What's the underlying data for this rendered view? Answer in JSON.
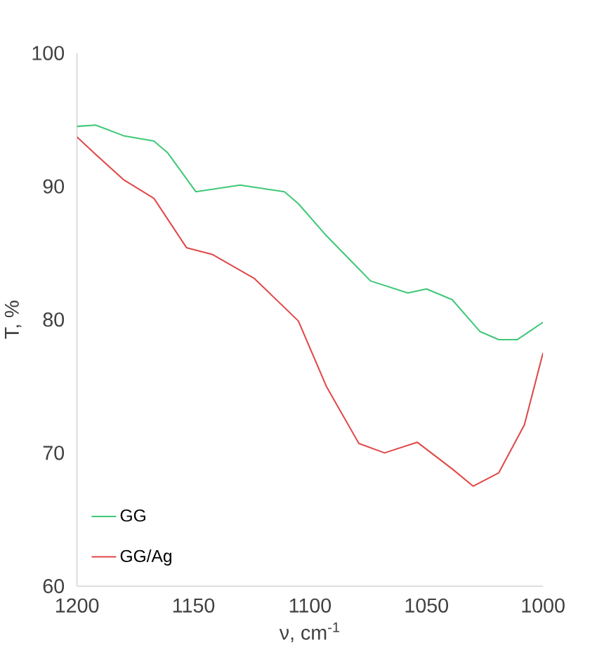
{
  "chart_data": {
    "type": "line",
    "xlabel": "ν, cm$^{-1}$",
    "ylabel": "T, %",
    "xlim": [
      1200,
      1000
    ],
    "ylim": [
      60,
      100
    ],
    "xticks": [
      1200,
      1150,
      1100,
      1050,
      1000
    ],
    "yticks": [
      60,
      70,
      80,
      90,
      100
    ],
    "grid": false,
    "legend": "bottom left",
    "marker": "none",
    "line_style": "solid",
    "series": [
      {
        "name": "GG",
        "color": "#3fc878",
        "x": [
          1200,
          1192,
          1180,
          1167,
          1161,
          1149,
          1130,
          1111,
          1105,
          1093,
          1074,
          1058,
          1050,
          1039,
          1027,
          1019,
          1011,
          1000
        ],
        "values": [
          94.5,
          94.6,
          93.8,
          93.4,
          92.5,
          89.6,
          90.1,
          89.6,
          88.7,
          86.3,
          82.9,
          82.0,
          82.3,
          81.5,
          79.1,
          78.5,
          78.5,
          79.8
        ]
      },
      {
        "name": "GG/Ag",
        "color": "#e04848",
        "x": [
          1200,
          1192,
          1180,
          1167,
          1153,
          1142,
          1124,
          1105,
          1093,
          1079,
          1068,
          1054,
          1039,
          1030,
          1019,
          1008,
          1000
        ],
        "values": [
          93.7,
          92.4,
          90.5,
          89.1,
          85.4,
          84.9,
          83.1,
          79.9,
          75.0,
          70.7,
          70.0,
          70.8,
          68.8,
          67.5,
          68.5,
          72.1,
          77.5
        ]
      }
    ]
  }
}
